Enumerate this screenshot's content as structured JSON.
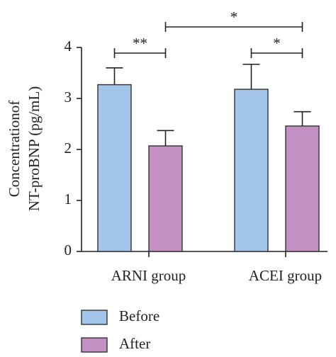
{
  "chart_data": {
    "type": "bar",
    "ylabel": [
      "Concentrationof",
      "NT-proBNP (pg/mL)"
    ],
    "categories": [
      "ARNI group",
      "ACEI group"
    ],
    "series": [
      {
        "name": "Before",
        "color": "#a4c5ea",
        "values": [
          3.27,
          3.18
        ],
        "errors": [
          0.33,
          0.49
        ]
      },
      {
        "name": "After",
        "color": "#c48fc2",
        "values": [
          2.07,
          2.46
        ],
        "errors": [
          0.3,
          0.28
        ]
      }
    ],
    "ylim": [
      0,
      4
    ],
    "yticks": [
      0,
      1,
      2,
      3,
      4
    ],
    "annotations": [
      "**",
      "*",
      "*"
    ],
    "legend": "bottom"
  }
}
